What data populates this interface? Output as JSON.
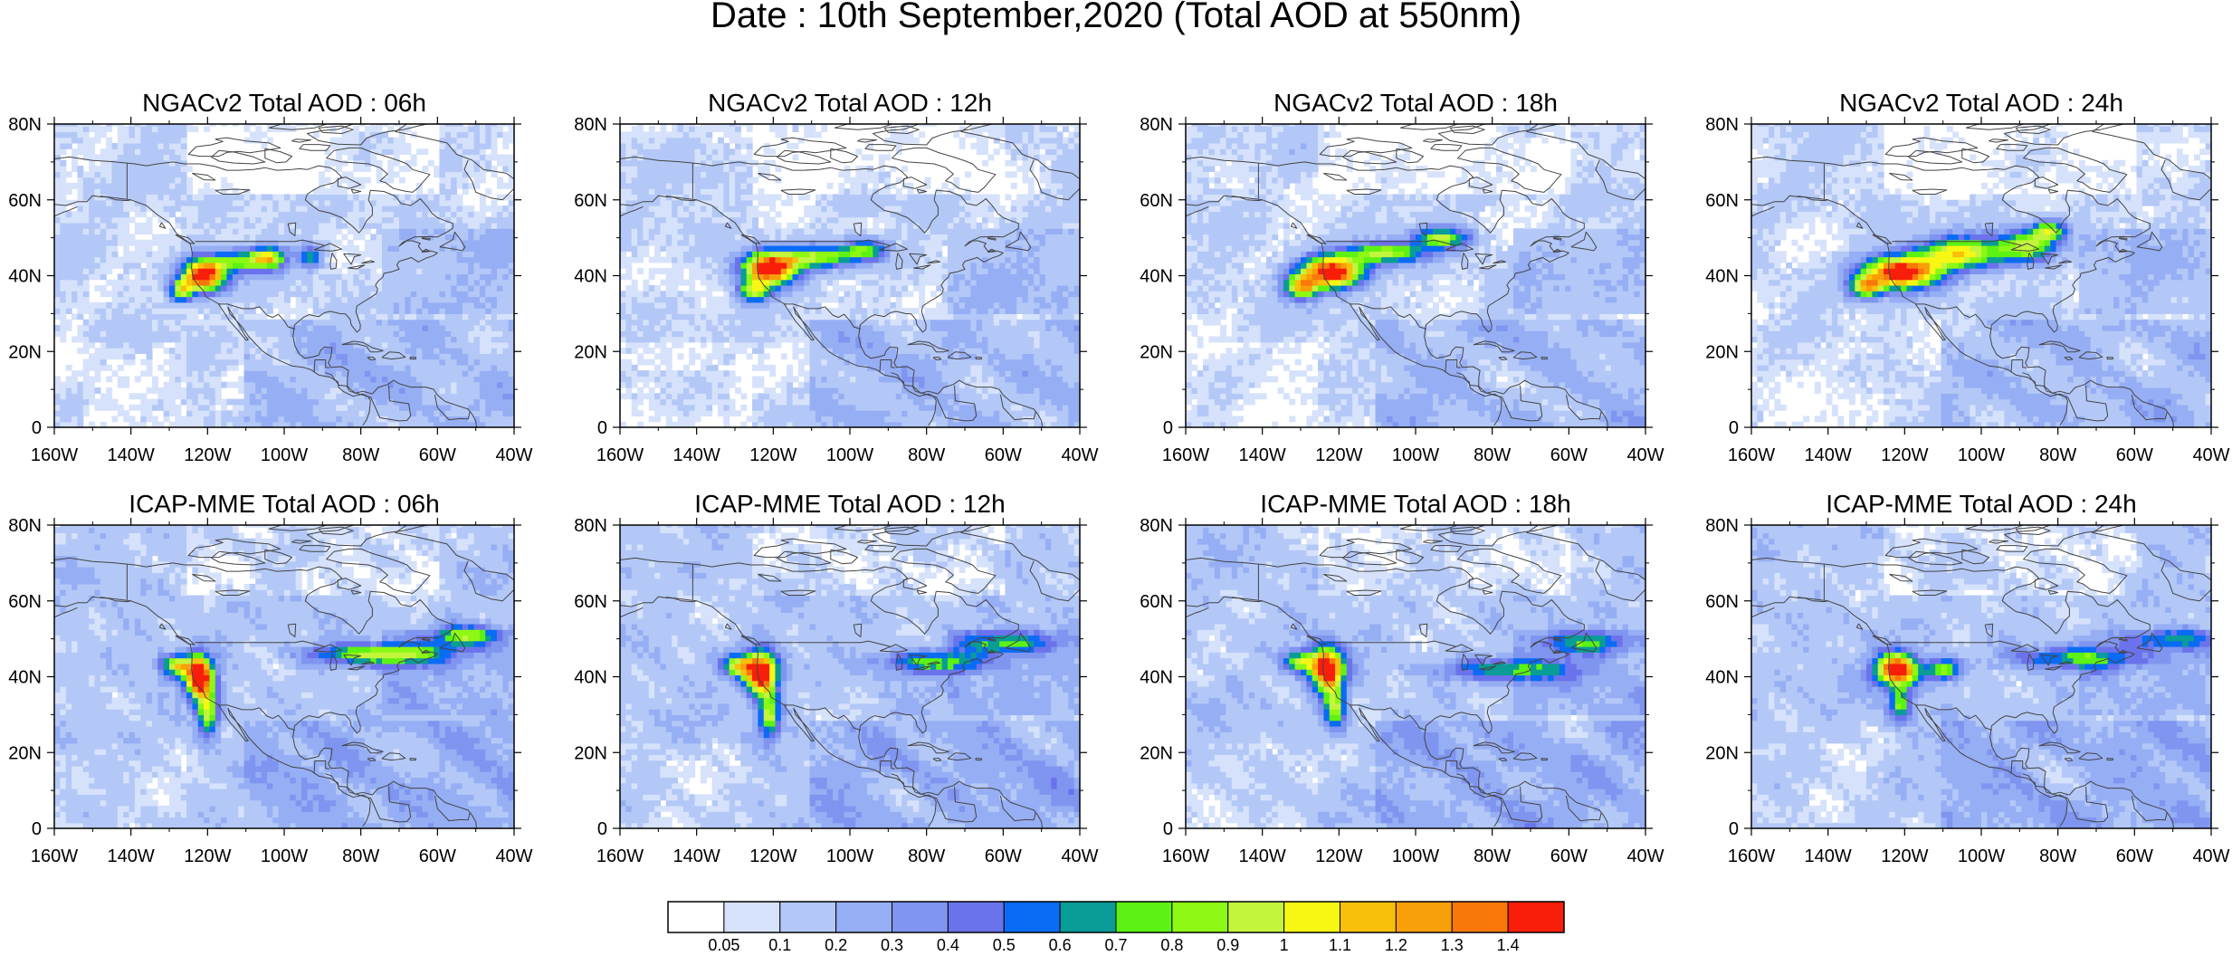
{
  "figure": {
    "title": "Date : 10th September,2020 (Total AOD at 550nm)"
  },
  "colors": {
    "levels": [
      "#ffffff",
      "#d6e2fb",
      "#b3c8f7",
      "#96aef4",
      "#7f95ef",
      "#6b73ec",
      "#0a6bf5",
      "#0a9c97",
      "#5cf214",
      "#8df814",
      "#c3f53c",
      "#f8f714",
      "#f8c00a",
      "#f89f0a",
      "#f8780a",
      "#f81e0a"
    ],
    "coast": "#444444"
  },
  "colorbar": {
    "labels": [
      "0.05",
      "0.1",
      "0.2",
      "0.3",
      "0.4",
      "0.5",
      "0.6",
      "0.7",
      "0.8",
      "0.9",
      "1",
      "1.1",
      "1.2",
      "1.3",
      "1.4"
    ]
  },
  "chart_data": [
    {
      "type": "heatmap",
      "title": "NGACv2 Total AOD : 06h",
      "model": "NGACv2",
      "hour": 6,
      "xlim": [
        -160,
        -40
      ],
      "ylim": [
        0,
        80
      ],
      "xticks": [
        "160W",
        "140W",
        "120W",
        "100W",
        "80W",
        "60W",
        "40W"
      ],
      "yticks": [
        "0",
        "20N",
        "40N",
        "60N",
        "80N"
      ],
      "plumes": [
        {
          "lon": -121,
          "lat": 40,
          "peak": 1.5,
          "rlon": 4,
          "rlat": 3
        },
        {
          "lon": -111,
          "lat": 44,
          "peak": 0.7,
          "rlon": 6,
          "rlat": 2
        },
        {
          "lon": -104,
          "lat": 45,
          "peak": 0.75,
          "rlon": 3,
          "rlat": 2
        },
        {
          "lon": -127,
          "lat": 36,
          "peak": 0.8,
          "rlon": 2,
          "rlat": 2
        },
        {
          "lon": -93,
          "lat": 45,
          "peak": 0.6,
          "rlon": 2,
          "rlat": 2
        }
      ]
    },
    {
      "type": "heatmap",
      "title": "NGACv2 Total AOD : 12h",
      "model": "NGACv2",
      "hour": 12,
      "xlim": [
        -160,
        -40
      ],
      "ylim": [
        0,
        80
      ],
      "xticks": [
        "160W",
        "140W",
        "120W",
        "100W",
        "80W",
        "60W",
        "40W"
      ],
      "yticks": [
        "0",
        "20N",
        "40N",
        "60N",
        "80N"
      ],
      "plumes": [
        {
          "lon": -121,
          "lat": 42,
          "peak": 1.5,
          "rlon": 5,
          "rlat": 3
        },
        {
          "lon": -108,
          "lat": 45,
          "peak": 0.75,
          "rlon": 7,
          "rlat": 2
        },
        {
          "lon": -96,
          "lat": 47,
          "peak": 0.7,
          "rlon": 4,
          "rlat": 2
        },
        {
          "lon": -125,
          "lat": 36,
          "peak": 0.8,
          "rlon": 3,
          "rlat": 2
        }
      ]
    },
    {
      "type": "heatmap",
      "title": "NGACv2 Total AOD : 18h",
      "model": "NGACv2",
      "hour": 18,
      "xlim": [
        -160,
        -40
      ],
      "ylim": [
        0,
        80
      ],
      "xticks": [
        "160W",
        "140W",
        "120W",
        "100W",
        "80W",
        "60W",
        "40W"
      ],
      "yticks": [
        "0",
        "20N",
        "40N",
        "60N",
        "80N"
      ],
      "plumes": [
        {
          "lon": -122,
          "lat": 41,
          "peak": 1.5,
          "rlon": 6,
          "rlat": 3
        },
        {
          "lon": -108,
          "lat": 46,
          "peak": 0.85,
          "rlon": 7,
          "rlat": 2
        },
        {
          "lon": -93,
          "lat": 50,
          "peak": 0.8,
          "rlon": 5,
          "rlat": 2
        },
        {
          "lon": -130,
          "lat": 37,
          "peak": 0.9,
          "rlon": 3,
          "rlat": 2
        }
      ]
    },
    {
      "type": "heatmap",
      "title": "NGACv2 Total AOD : 24h",
      "model": "NGACv2",
      "hour": 24,
      "xlim": [
        -160,
        -40
      ],
      "ylim": [
        0,
        80
      ],
      "xticks": [
        "160W",
        "140W",
        "120W",
        "100W",
        "80W",
        "60W",
        "40W"
      ],
      "yticks": [
        "0",
        "20N",
        "40N",
        "60N",
        "80N"
      ],
      "plumes": [
        {
          "lon": -121,
          "lat": 41,
          "peak": 1.5,
          "rlon": 7,
          "rlat": 3
        },
        {
          "lon": -105,
          "lat": 46,
          "peak": 0.95,
          "rlon": 8,
          "rlat": 3
        },
        {
          "lon": -88,
          "lat": 48,
          "peak": 0.85,
          "rlon": 5,
          "rlat": 3
        },
        {
          "lon": -82,
          "lat": 52,
          "peak": 0.75,
          "rlon": 3,
          "rlat": 2
        },
        {
          "lon": -130,
          "lat": 37,
          "peak": 0.9,
          "rlon": 3,
          "rlat": 2
        }
      ]
    },
    {
      "type": "heatmap",
      "title": "ICAP-MME Total AOD : 06h",
      "model": "ICAP-MME",
      "hour": 6,
      "xlim": [
        -160,
        -40
      ],
      "ylim": [
        0,
        80
      ],
      "xticks": [
        "160W",
        "140W",
        "120W",
        "100W",
        "80W",
        "60W",
        "40W"
      ],
      "yticks": [
        "0",
        "20N",
        "40N",
        "60N",
        "80N"
      ],
      "plumes": [
        {
          "lon": -122,
          "lat": 40,
          "peak": 1.5,
          "rlon": 2.5,
          "rlat": 4
        },
        {
          "lon": -120,
          "lat": 30,
          "peak": 0.8,
          "rlon": 2,
          "rlat": 4
        },
        {
          "lon": -128,
          "lat": 43,
          "peak": 0.8,
          "rlon": 3,
          "rlat": 2
        },
        {
          "lon": -75,
          "lat": 46,
          "peak": 0.8,
          "rlon": 12,
          "rlat": 2
        },
        {
          "lon": -52,
          "lat": 51,
          "peak": 0.65,
          "rlon": 6,
          "rlat": 2
        }
      ]
    },
    {
      "type": "heatmap",
      "title": "ICAP-MME Total AOD : 12h",
      "model": "ICAP-MME",
      "hour": 12,
      "xlim": [
        -160,
        -40
      ],
      "ylim": [
        0,
        80
      ],
      "xticks": [
        "160W",
        "140W",
        "120W",
        "100W",
        "80W",
        "60W",
        "40W"
      ],
      "yticks": [
        "0",
        "20N",
        "40N",
        "60N",
        "80N"
      ],
      "plumes": [
        {
          "lon": -123,
          "lat": 41,
          "peak": 1.5,
          "rlon": 3,
          "rlat": 4
        },
        {
          "lon": -121,
          "lat": 30,
          "peak": 0.8,
          "rlon": 2,
          "rlat": 4
        },
        {
          "lon": -129,
          "lat": 43,
          "peak": 0.8,
          "rlon": 3,
          "rlat": 2
        },
        {
          "lon": -78,
          "lat": 44,
          "peak": 0.6,
          "rlon": 10,
          "rlat": 2
        },
        {
          "lon": -60,
          "lat": 49,
          "peak": 0.55,
          "rlon": 8,
          "rlat": 2
        }
      ]
    },
    {
      "type": "heatmap",
      "title": "ICAP-MME Total AOD : 18h",
      "model": "ICAP-MME",
      "hour": 18,
      "xlim": [
        -160,
        -40
      ],
      "ylim": [
        0,
        80
      ],
      "xticks": [
        "160W",
        "140W",
        "120W",
        "100W",
        "80W",
        "60W",
        "40W"
      ],
      "yticks": [
        "0",
        "20N",
        "40N",
        "60N",
        "80N"
      ],
      "plumes": [
        {
          "lon": -123,
          "lat": 42,
          "peak": 1.5,
          "rlon": 3,
          "rlat": 4
        },
        {
          "lon": -121,
          "lat": 32,
          "peak": 0.75,
          "rlon": 2,
          "rlat": 4
        },
        {
          "lon": -130,
          "lat": 44,
          "peak": 0.8,
          "rlon": 3,
          "rlat": 2
        },
        {
          "lon": -75,
          "lat": 42,
          "peak": 0.55,
          "rlon": 12,
          "rlat": 2
        },
        {
          "lon": -55,
          "lat": 49,
          "peak": 0.5,
          "rlon": 8,
          "rlat": 2
        }
      ]
    },
    {
      "type": "heatmap",
      "title": "ICAP-MME Total AOD : 24h",
      "model": "ICAP-MME",
      "hour": 24,
      "xlim": [
        -160,
        -40
      ],
      "ylim": [
        0,
        80
      ],
      "xticks": [
        "160W",
        "140W",
        "120W",
        "100W",
        "80W",
        "60W",
        "40W"
      ],
      "yticks": [
        "0",
        "20N",
        "40N",
        "60N",
        "80N"
      ],
      "plumes": [
        {
          "lon": -122,
          "lat": 42,
          "peak": 1.5,
          "rlon": 4,
          "rlat": 3
        },
        {
          "lon": -121,
          "lat": 33,
          "peak": 0.7,
          "rlon": 2,
          "rlat": 3
        },
        {
          "lon": -110,
          "lat": 42,
          "peak": 0.8,
          "rlon": 3,
          "rlat": 2
        },
        {
          "lon": -75,
          "lat": 45,
          "peak": 0.5,
          "rlon": 12,
          "rlat": 2
        },
        {
          "lon": -50,
          "lat": 50,
          "peak": 0.5,
          "rlon": 8,
          "rlat": 2
        }
      ]
    }
  ]
}
